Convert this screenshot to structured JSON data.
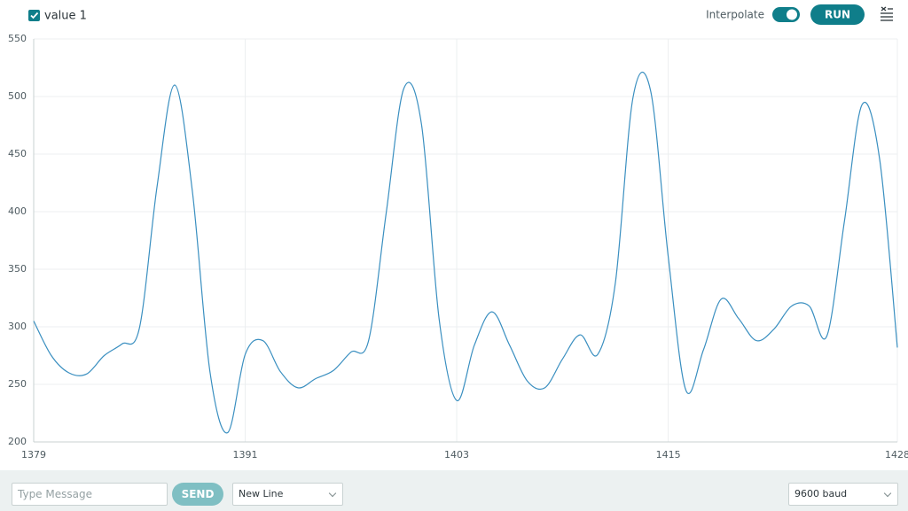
{
  "toolbar": {
    "interpolate": "Interpolate",
    "run": "RUN"
  },
  "chart_data": {
    "type": "line",
    "x": [
      1379,
      1380,
      1381,
      1382,
      1383,
      1384,
      1385,
      1386,
      1387,
      1388,
      1389,
      1390,
      1391,
      1392,
      1393,
      1394,
      1395,
      1396,
      1397,
      1398,
      1399,
      1400,
      1401,
      1402,
      1403,
      1404,
      1405,
      1406,
      1407,
      1408,
      1409,
      1410,
      1411,
      1412,
      1413,
      1414,
      1415,
      1416,
      1417,
      1418,
      1419,
      1420,
      1421,
      1422,
      1423,
      1424,
      1425,
      1426,
      1427,
      1428
    ],
    "series": [
      {
        "name": "value 1",
        "color": "#3a8fc0",
        "values": [
          305,
          275,
          260,
          259,
          275,
          285,
          299,
          422,
          510,
          418,
          261,
          208,
          276,
          288,
          261,
          247,
          255,
          262,
          278,
          288,
          399,
          507,
          476,
          307,
          236,
          284,
          313,
          284,
          253,
          247,
          272,
          293,
          276,
          338,
          499,
          505,
          361,
          245,
          280,
          324,
          307,
          288,
          298,
          318,
          318,
          292,
          392,
          493,
          445,
          282
        ]
      }
    ],
    "xlim": [
      1379,
      1428
    ],
    "xticks": [
      1379,
      1391,
      1403,
      1415,
      1428
    ],
    "ylim": [
      200,
      550
    ],
    "yticks": [
      200,
      250,
      300,
      350,
      400,
      450,
      500,
      550
    ],
    "grid": true,
    "interpolate": true
  },
  "footer": {
    "message_placeholder": "Type Message",
    "send": "SEND",
    "line_ending": "New Line",
    "baud": "9600 baud"
  }
}
